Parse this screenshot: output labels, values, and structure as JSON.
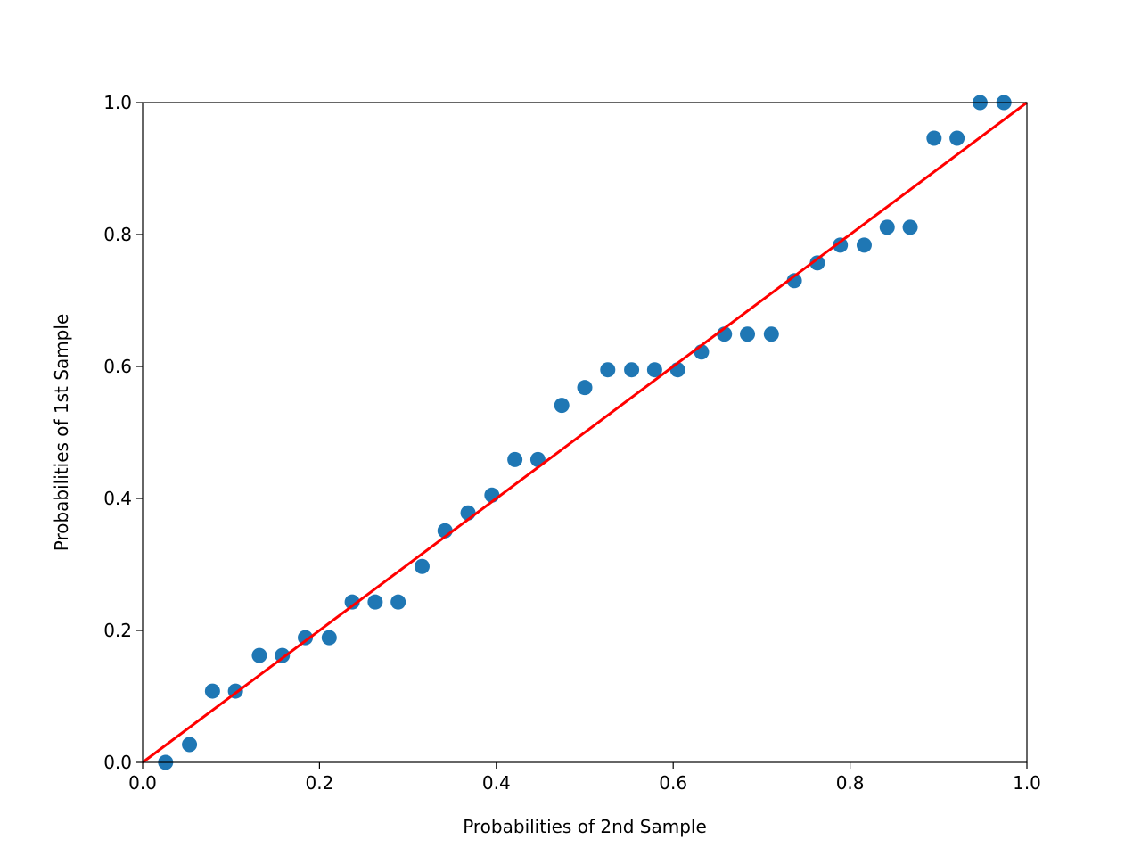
{
  "chart_data": {
    "type": "scatter",
    "title": "",
    "xlabel": "Probabilities of 2nd Sample",
    "ylabel": "Probabilities of 1st Sample",
    "xlim": [
      0,
      1
    ],
    "ylim": [
      0,
      1
    ],
    "grid": false,
    "xticks": [
      "0.0",
      "0.2",
      "0.4",
      "0.6",
      "0.8",
      "1.0"
    ],
    "yticks": [
      "0.0",
      "0.2",
      "0.4",
      "0.6",
      "0.8",
      "1.0"
    ],
    "point_color": "#1f77b4",
    "line_color": "#ff0000",
    "reference_line": {
      "x": [
        0,
        1
      ],
      "y": [
        0,
        1
      ]
    },
    "x": [
      0.026,
      0.053,
      0.079,
      0.105,
      0.132,
      0.158,
      0.184,
      0.211,
      0.237,
      0.263,
      0.289,
      0.316,
      0.342,
      0.368,
      0.395,
      0.421,
      0.447,
      0.474,
      0.5,
      0.526,
      0.553,
      0.579,
      0.605,
      0.632,
      0.658,
      0.684,
      0.711,
      0.737,
      0.763,
      0.789,
      0.816,
      0.842,
      0.868,
      0.895,
      0.921,
      0.947,
      0.974
    ],
    "y": [
      0.0,
      0.027,
      0.108,
      0.108,
      0.162,
      0.162,
      0.189,
      0.189,
      0.243,
      0.243,
      0.243,
      0.297,
      0.351,
      0.378,
      0.405,
      0.459,
      0.459,
      0.541,
      0.568,
      0.595,
      0.595,
      0.595,
      0.595,
      0.622,
      0.649,
      0.649,
      0.649,
      0.73,
      0.757,
      0.784,
      0.784,
      0.811,
      0.811,
      0.946,
      0.946,
      1.0,
      1.0
    ]
  }
}
